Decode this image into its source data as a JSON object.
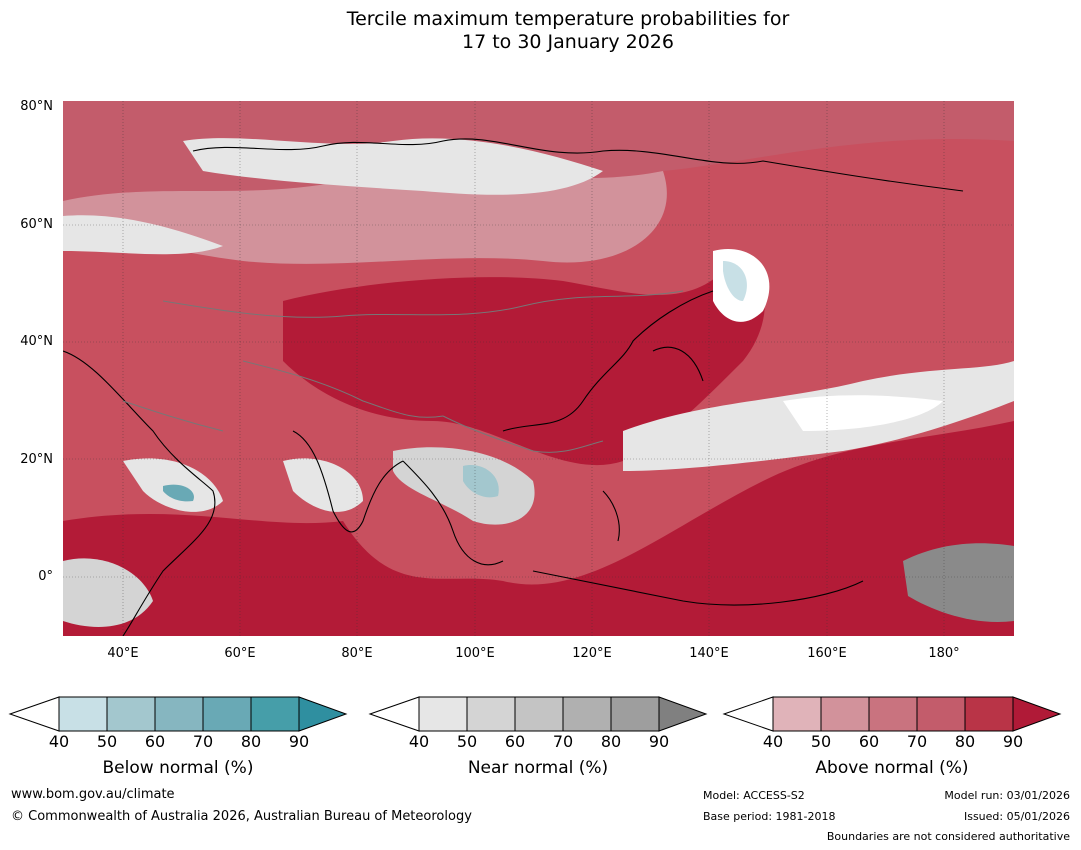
{
  "title": {
    "line1": "Tercile maximum temperature probabilities for",
    "line2": "17 to 30 January 2026"
  },
  "map": {
    "latitude_labels": [
      "80°N",
      "60°N",
      "40°N",
      "20°N",
      "0°"
    ],
    "longitude_labels": [
      "40°E",
      "60°E",
      "80°E",
      "100°E",
      "120°E",
      "140°E",
      "160°E",
      "180°"
    ],
    "colors": {
      "above_dominant": "#b31b37",
      "near_grey": "#8a8a8a",
      "below_teal": "#a6cdd6"
    }
  },
  "legends": [
    {
      "title": "Below normal (%)",
      "ticks": [
        "40",
        "50",
        "60",
        "70",
        "80",
        "90"
      ],
      "colors": [
        "#c8e0e6",
        "#a3c7ce",
        "#86b6c0",
        "#69a9b5",
        "#469ea9",
        "#2f8fa0"
      ]
    },
    {
      "title": "Near normal (%)",
      "ticks": [
        "40",
        "50",
        "60",
        "70",
        "80",
        "90"
      ],
      "colors": [
        "#e6e6e6",
        "#d4d4d4",
        "#c4c4c4",
        "#b0b0b0",
        "#9e9e9e",
        "#808080"
      ]
    },
    {
      "title": "Above normal (%)",
      "ticks": [
        "40",
        "50",
        "60",
        "70",
        "80",
        "90"
      ],
      "colors": [
        "#e0b3b9",
        "#d2929b",
        "#c9737f",
        "#c35c6b",
        "#b93447",
        "#b01a37"
      ]
    }
  ],
  "footer": {
    "website": "www.bom.gov.au/climate",
    "copyright": "© Commonwealth of Australia 2026, Australian Bureau of Meteorology",
    "model": "Model: ACCESS-S2",
    "base_period": "Base period: 1981-2018",
    "model_run": "Model run: 03/01/2026",
    "issued": "Issued: 05/01/2026",
    "boundaries_note": "Boundaries are not considered authoritative"
  }
}
